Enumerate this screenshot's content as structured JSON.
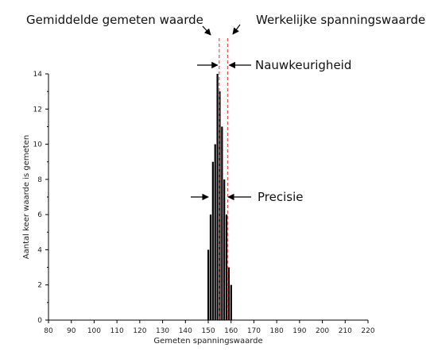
{
  "chart_data": {
    "type": "bar",
    "xlabel": "Gemeten spanningswaarde",
    "ylabel": "Aantal keer waarde is gemeten",
    "xlim": [
      80,
      220
    ],
    "ylim": [
      0,
      14
    ],
    "x_ticks": [
      80,
      90,
      100,
      110,
      120,
      130,
      140,
      150,
      160,
      170,
      180,
      190,
      200,
      210,
      220
    ],
    "y_ticks": [
      0,
      2,
      4,
      6,
      8,
      10,
      12,
      14
    ],
    "x": [
      150,
      151,
      152,
      153,
      154,
      155,
      156,
      157,
      158,
      159,
      160
    ],
    "values": [
      4,
      6,
      9,
      10,
      14,
      13,
      11,
      8,
      6,
      3,
      2
    ],
    "mean_line": 154.8,
    "true_line": 158.5,
    "bar_color": "#000000",
    "line_color": "#e8504a",
    "annotations": {
      "mean_label": "Gemiddelde gemeten waarde",
      "true_label": "Werkelijke spanningswaarde",
      "accuracy_label": "Nauwkeurigheid",
      "precision_label": "Precisie"
    }
  }
}
